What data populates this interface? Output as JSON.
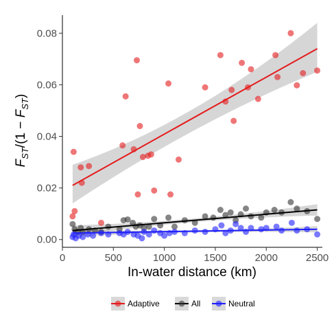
{
  "chart_data": {
    "type": "scatter",
    "xlabel": "In-water distance (km)",
    "ylabel_main": "F",
    "ylabel_sub": "ST",
    "ylabel_pre": "/(1 − ",
    "ylabel_post": ")",
    "xlim": [
      0,
      2550
    ],
    "ylim": [
      -0.003,
      0.087
    ],
    "xticks": [
      0,
      500,
      1000,
      1500,
      2000,
      2500
    ],
    "xtick_labels": [
      "0",
      "500",
      "1000",
      "1500",
      "2000",
      "2500"
    ],
    "yticks": [
      0.0,
      0.02,
      0.04,
      0.06,
      0.08
    ],
    "ytick_labels": [
      "0.00",
      "0.02",
      "0.04",
      "0.06",
      "0.08"
    ],
    "grid": false,
    "legend_position": "bottom",
    "series": [
      {
        "name": "Adaptive",
        "color": "#e41a1c",
        "points": [
          [
            110,
            0.034
          ],
          [
            120,
            0.011
          ],
          [
            100,
            0.009
          ],
          [
            180,
            0.028
          ],
          [
            190,
            0.022
          ],
          [
            260,
            0.0285
          ],
          [
            380,
            0.0065
          ],
          [
            590,
            0.0365
          ],
          [
            620,
            0.0555
          ],
          [
            700,
            0.035
          ],
          [
            730,
            0.0695
          ],
          [
            740,
            0.0175
          ],
          [
            760,
            0.044
          ],
          [
            790,
            0.032
          ],
          [
            840,
            0.0325
          ],
          [
            870,
            0.033
          ],
          [
            900,
            0.019
          ],
          [
            1040,
            0.0605
          ],
          [
            1060,
            0.0175
          ],
          [
            1140,
            0.031
          ],
          [
            1400,
            0.059
          ],
          [
            1550,
            0.0715
          ],
          [
            1600,
            0.0535
          ],
          [
            1660,
            0.058
          ],
          [
            1680,
            0.046
          ],
          [
            1760,
            0.0685
          ],
          [
            1820,
            0.059
          ],
          [
            1850,
            0.066
          ],
          [
            1920,
            0.0545
          ],
          [
            2090,
            0.0715
          ],
          [
            2110,
            0.063
          ],
          [
            2240,
            0.08
          ],
          [
            2300,
            0.0598
          ],
          [
            2360,
            0.0645
          ],
          [
            2500,
            0.0655
          ]
        ],
        "fit": {
          "x": [
            100,
            2500
          ],
          "y": [
            0.021,
            0.074
          ],
          "ci_low_start": 0.014,
          "ci_high_start": 0.029,
          "ci_low_mid": 0.0425,
          "ci_high_mid": 0.051,
          "ci_low_end": 0.065,
          "ci_high_end": 0.084
        }
      },
      {
        "name": "All",
        "color": "#333333",
        "points": [
          [
            100,
            0.006
          ],
          [
            120,
            0.004
          ],
          [
            150,
            0.003
          ],
          [
            180,
            0.0045
          ],
          [
            200,
            0.003
          ],
          [
            260,
            0.004
          ],
          [
            320,
            0.0035
          ],
          [
            380,
            0.003
          ],
          [
            450,
            0.005
          ],
          [
            560,
            0.004
          ],
          [
            600,
            0.0075
          ],
          [
            640,
            0.0078
          ],
          [
            690,
            0.0065
          ],
          [
            720,
            0.005
          ],
          [
            760,
            0.0055
          ],
          [
            800,
            0.0045
          ],
          [
            850,
            0.005
          ],
          [
            900,
            0.008
          ],
          [
            960,
            0.0055
          ],
          [
            1040,
            0.0085
          ],
          [
            1100,
            0.005
          ],
          [
            1200,
            0.0075
          ],
          [
            1300,
            0.0065
          ],
          [
            1400,
            0.009
          ],
          [
            1480,
            0.0085
          ],
          [
            1550,
            0.0115
          ],
          [
            1600,
            0.0095
          ],
          [
            1650,
            0.0105
          ],
          [
            1700,
            0.0075
          ],
          [
            1750,
            0.0098
          ],
          [
            1800,
            0.012
          ],
          [
            1850,
            0.009
          ],
          [
            1950,
            0.0085
          ],
          [
            2000,
            0.0105
          ],
          [
            2080,
            0.0115
          ],
          [
            2150,
            0.0105
          ],
          [
            2240,
            0.0145
          ],
          [
            2300,
            0.012
          ],
          [
            2400,
            0.011
          ],
          [
            2500,
            0.008
          ]
        ],
        "fit": {
          "x": [
            100,
            2500
          ],
          "y": [
            0.0035,
            0.0115
          ],
          "ci_low_start": 0.0015,
          "ci_high_start": 0.0055,
          "ci_low_mid": 0.0068,
          "ci_high_mid": 0.0082,
          "ci_low_end": 0.0093,
          "ci_high_end": 0.0137
        }
      },
      {
        "name": "Neutral",
        "color": "#1f1fff",
        "points": [
          [
            100,
            0.001
          ],
          [
            110,
            0.002
          ],
          [
            130,
            0.0005
          ],
          [
            160,
            0.0015
          ],
          [
            200,
            0.001
          ],
          [
            250,
            0.002
          ],
          [
            300,
            0.0015
          ],
          [
            380,
            0.0025
          ],
          [
            450,
            0.002
          ],
          [
            560,
            0.0025
          ],
          [
            600,
            0.002
          ],
          [
            640,
            0.003
          ],
          [
            700,
            0.002
          ],
          [
            740,
            0.0015
          ],
          [
            780,
            0.0005
          ],
          [
            800,
            0.003
          ],
          [
            850,
            0.002
          ],
          [
            900,
            0.0035
          ],
          [
            960,
            0.0025
          ],
          [
            1000,
            0.0015
          ],
          [
            1050,
            0.0025
          ],
          [
            1100,
            0.003
          ],
          [
            1200,
            0.0025
          ],
          [
            1300,
            0.0035
          ],
          [
            1400,
            0.003
          ],
          [
            1500,
            0.004
          ],
          [
            1560,
            0.0055
          ],
          [
            1600,
            0.0025
          ],
          [
            1650,
            0.0035
          ],
          [
            1700,
            0.006
          ],
          [
            1750,
            0.0045
          ],
          [
            1800,
            0.003
          ],
          [
            1850,
            0.0045
          ],
          [
            1950,
            0.004
          ],
          [
            2000,
            0.0045
          ],
          [
            2100,
            0.005
          ],
          [
            2150,
            0.0035
          ],
          [
            2250,
            0.0065
          ],
          [
            2300,
            0.0035
          ],
          [
            2400,
            0.004
          ],
          [
            2500,
            0.002
          ]
        ],
        "fit": {
          "x": [
            100,
            2500
          ],
          "y": [
            0.0025,
            0.004
          ],
          "ci_low_start": 0.0012,
          "ci_high_start": 0.0038,
          "ci_low_mid": 0.0028,
          "ci_high_mid": 0.0036,
          "ci_low_end": 0.0028,
          "ci_high_end": 0.0052
        }
      }
    ]
  }
}
